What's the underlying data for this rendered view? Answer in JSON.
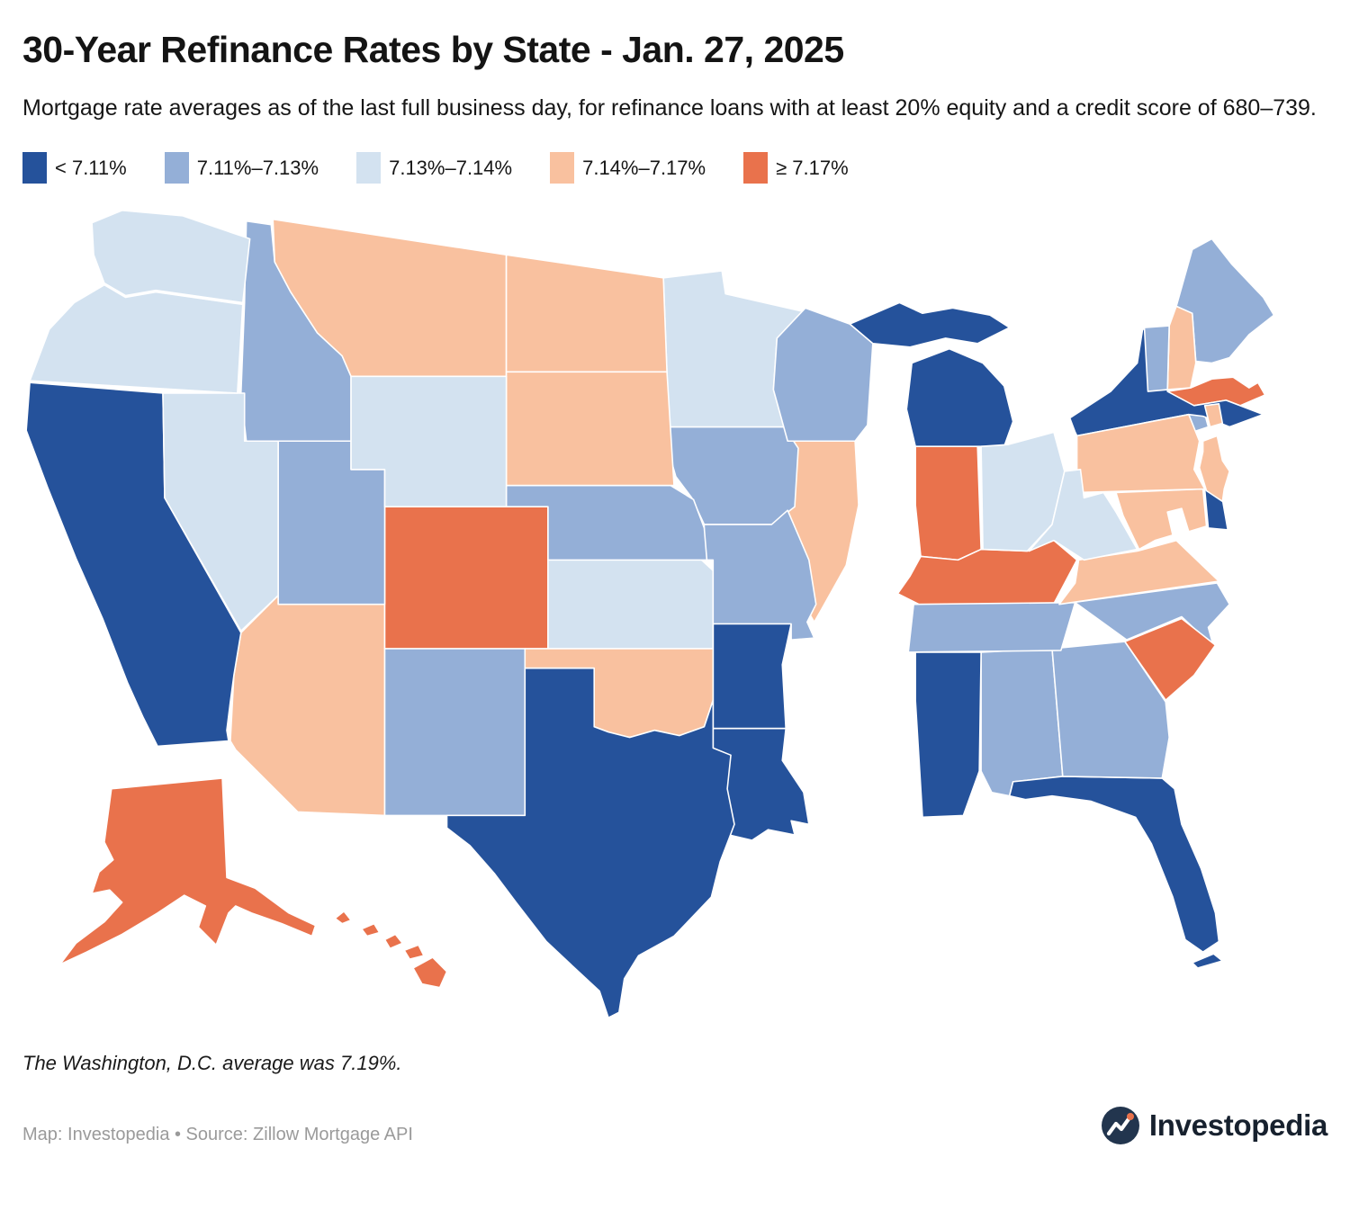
{
  "header": {
    "title": "30-Year Refinance Rates by State - Jan. 27, 2025",
    "subtitle": "Mortgage rate averages as of the last full business day, for refinance loans with at least 20% equity and a credit score of 680–739."
  },
  "chart_data": {
    "type": "choropleth",
    "title": "30-Year Refinance Rates by State",
    "date": "Jan. 27, 2025",
    "legend_position": "top",
    "bins": [
      {
        "label": "< 7.11%",
        "color": "#25529B"
      },
      {
        "label": "7.11%–7.13%",
        "color": "#94AFD7"
      },
      {
        "label": "7.13%–7.14%",
        "color": "#D3E2F0"
      },
      {
        "label": "7.14%–7.17%",
        "color": "#F9C19F"
      },
      {
        "label": "≥ 7.17%",
        "color": "#E9724C"
      }
    ],
    "states": [
      {
        "code": "AL",
        "name": "Alabama",
        "bin": 1
      },
      {
        "code": "AK",
        "name": "Alaska",
        "bin": 4
      },
      {
        "code": "AZ",
        "name": "Arizona",
        "bin": 3
      },
      {
        "code": "AR",
        "name": "Arkansas",
        "bin": 0
      },
      {
        "code": "CA",
        "name": "California",
        "bin": 0
      },
      {
        "code": "CO",
        "name": "Colorado",
        "bin": 4
      },
      {
        "code": "CT",
        "name": "Connecticut",
        "bin": 1
      },
      {
        "code": "DE",
        "name": "Delaware",
        "bin": 0
      },
      {
        "code": "FL",
        "name": "Florida",
        "bin": 0
      },
      {
        "code": "GA",
        "name": "Georgia",
        "bin": 1
      },
      {
        "code": "HI",
        "name": "Hawaii",
        "bin": 4
      },
      {
        "code": "ID",
        "name": "Idaho",
        "bin": 1
      },
      {
        "code": "IL",
        "name": "Illinois",
        "bin": 3
      },
      {
        "code": "IN",
        "name": "Indiana",
        "bin": 4
      },
      {
        "code": "IA",
        "name": "Iowa",
        "bin": 1
      },
      {
        "code": "KS",
        "name": "Kansas",
        "bin": 2
      },
      {
        "code": "KY",
        "name": "Kentucky",
        "bin": 4
      },
      {
        "code": "LA",
        "name": "Louisiana",
        "bin": 0
      },
      {
        "code": "ME",
        "name": "Maine",
        "bin": 1
      },
      {
        "code": "MD",
        "name": "Maryland",
        "bin": 3
      },
      {
        "code": "MA",
        "name": "Massachusetts",
        "bin": 4
      },
      {
        "code": "MI",
        "name": "Michigan",
        "bin": 0
      },
      {
        "code": "MN",
        "name": "Minnesota",
        "bin": 2
      },
      {
        "code": "MS",
        "name": "Mississippi",
        "bin": 0
      },
      {
        "code": "MO",
        "name": "Missouri",
        "bin": 1
      },
      {
        "code": "MT",
        "name": "Montana",
        "bin": 3
      },
      {
        "code": "NE",
        "name": "Nebraska",
        "bin": 1
      },
      {
        "code": "NV",
        "name": "Nevada",
        "bin": 2
      },
      {
        "code": "NH",
        "name": "New Hampshire",
        "bin": 3
      },
      {
        "code": "NJ",
        "name": "New Jersey",
        "bin": 3
      },
      {
        "code": "NM",
        "name": "New Mexico",
        "bin": 1
      },
      {
        "code": "NY",
        "name": "New York",
        "bin": 0
      },
      {
        "code": "NC",
        "name": "North Carolina",
        "bin": 1
      },
      {
        "code": "ND",
        "name": "North Dakota",
        "bin": 3
      },
      {
        "code": "OH",
        "name": "Ohio",
        "bin": 2
      },
      {
        "code": "OK",
        "name": "Oklahoma",
        "bin": 3
      },
      {
        "code": "OR",
        "name": "Oregon",
        "bin": 2
      },
      {
        "code": "PA",
        "name": "Pennsylvania",
        "bin": 3
      },
      {
        "code": "RI",
        "name": "Rhode Island",
        "bin": 3
      },
      {
        "code": "SC",
        "name": "South Carolina",
        "bin": 4
      },
      {
        "code": "SD",
        "name": "South Dakota",
        "bin": 3
      },
      {
        "code": "TN",
        "name": "Tennessee",
        "bin": 1
      },
      {
        "code": "TX",
        "name": "Texas",
        "bin": 0
      },
      {
        "code": "UT",
        "name": "Utah",
        "bin": 1
      },
      {
        "code": "VT",
        "name": "Vermont",
        "bin": 1
      },
      {
        "code": "VA",
        "name": "Virginia",
        "bin": 3
      },
      {
        "code": "WA",
        "name": "Washington",
        "bin": 2
      },
      {
        "code": "WV",
        "name": "West Virginia",
        "bin": 2
      },
      {
        "code": "WI",
        "name": "Wisconsin",
        "bin": 1
      },
      {
        "code": "WY",
        "name": "Wyoming",
        "bin": 2
      }
    ]
  },
  "footer": {
    "note": "The Washington, D.C. average was 7.19%.",
    "dc_average": "7.19%",
    "credit": "Map: Investopedia • Source: Zillow Mortgage API",
    "logo_text": "Investopedia"
  }
}
